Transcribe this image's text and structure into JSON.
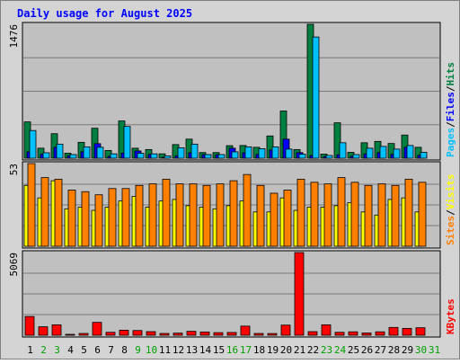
{
  "chart_data": {
    "title": "Daily usage for August 2025",
    "type": "bar",
    "categories": [
      "1",
      "2",
      "3",
      "4",
      "5",
      "6",
      "7",
      "8",
      "9",
      "10",
      "11",
      "12",
      "13",
      "14",
      "15",
      "16",
      "17",
      "18",
      "19",
      "20",
      "21",
      "22",
      "23",
      "24",
      "25",
      "26",
      "27",
      "28",
      "29",
      "30",
      "31"
    ],
    "weekend_days": [
      2,
      3,
      9,
      10,
      16,
      17,
      23,
      24,
      30,
      31
    ],
    "colors": {
      "hits": "#008040",
      "files": "#0000ff",
      "pages": "#00c0ff",
      "visits": "#ffff00",
      "sites": "#ff8000",
      "kbytes": "#ff0000",
      "plot_bg": "#c0c0c0",
      "frame_bg": "#d4d4d4",
      "title": "#0000ff",
      "weekend_label": "#00a000",
      "weekday_label": "#000000"
    },
    "panels": [
      {
        "name": "usage",
        "max_label": "1476",
        "ymax": 1476,
        "legend": [
          {
            "key": "pages",
            "text": "Pages"
          },
          {
            "key": "sep",
            "text": "/"
          },
          {
            "key": "files",
            "text": "Files"
          },
          {
            "key": "sep",
            "text": "/"
          },
          {
            "key": "hits",
            "text": "Hits"
          }
        ],
        "series": [
          {
            "key": "hits",
            "values": [
              400,
              110,
              270,
              55,
              175,
              330,
              85,
              410,
              110,
              95,
              48,
              150,
              210,
              62,
              62,
              138,
              140,
              120,
              245,
              520,
              95,
              1476,
              45,
              390,
              65,
              170,
              185,
              162,
              255,
              120,
              0
            ]
          },
          {
            "key": "files",
            "values": [
              70,
              45,
              120,
              28,
              70,
              160,
              20,
              55,
              80,
              42,
              10,
              25,
              60,
              40,
              38,
              110,
              60,
              42,
              90,
              210,
              62,
              30,
              18,
              38,
              20,
              48,
              62,
              42,
              120,
              32,
              0
            ]
          },
          {
            "key": "pages",
            "values": [
              305,
              60,
              155,
              40,
              125,
              120,
              48,
              350,
              55,
              48,
              25,
              115,
              155,
              40,
              40,
              70,
              125,
              105,
              125,
              100,
              44,
              1336,
              30,
              170,
              40,
              110,
              130,
              100,
              140,
              65,
              0
            ]
          }
        ]
      },
      {
        "name": "visits",
        "max_label": "53",
        "ymax": 53,
        "legend": [
          {
            "key": "sites",
            "text": "Sites"
          },
          {
            "key": "sep",
            "text": "/"
          },
          {
            "key": "visits",
            "text": "Visits"
          }
        ],
        "series": [
          {
            "key": "visits",
            "values": [
              39,
              31,
              42,
              24,
              25,
              23,
              25,
              29,
              32,
              25,
              29,
              30,
              26,
              25,
              24,
              26,
              29,
              22,
              22,
              31,
              23,
              25,
              25,
              26,
              28,
              22,
              20,
              30,
              31,
              22,
              0
            ]
          },
          {
            "key": "sites",
            "values": [
              53,
              44,
              43,
              36,
              35,
              33,
              37,
              37,
              39,
              40,
              43,
              40,
              40,
              39,
              40,
              42,
              46,
              39,
              34,
              36,
              43,
              41,
              40,
              44,
              41,
              39,
              40,
              39,
              43,
              41,
              0
            ]
          }
        ]
      },
      {
        "name": "kbytes",
        "max_label": "5069",
        "ymax": 5069,
        "legend": [
          {
            "key": "kbytes",
            "text": "KBytes"
          }
        ],
        "series": [
          {
            "key": "kbytes",
            "values": [
              1150,
              520,
              640,
              55,
              110,
              790,
              180,
              310,
              290,
              220,
              110,
              130,
              240,
              200,
              160,
              170,
              560,
              110,
              105,
              620,
              5069,
              220,
              640,
              180,
              210,
              140,
              210,
              480,
              420,
              460,
              0
            ]
          }
        ]
      }
    ]
  }
}
